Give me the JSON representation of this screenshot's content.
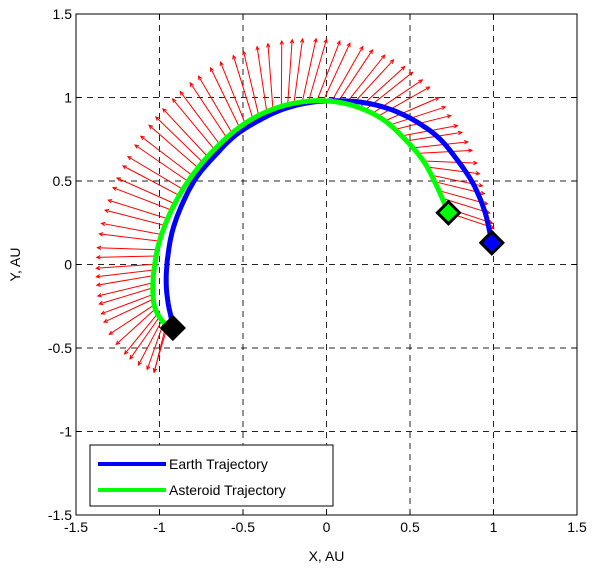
{
  "chart_data": {
    "type": "line",
    "title": "",
    "xlabel": "X, AU",
    "ylabel": "Y, AU",
    "xlim": [
      -1.5,
      1.5
    ],
    "ylim": [
      -1.5,
      1.5
    ],
    "grid": true,
    "legend_position": "bottom-left",
    "xticks": [
      -1.5,
      -1,
      -0.5,
      0,
      0.5,
      1,
      1.5
    ],
    "yticks": [
      -1.5,
      -1,
      -0.5,
      0,
      0.5,
      1,
      1.5
    ],
    "xtick_labels": [
      "-1.5",
      "-1",
      "-0.5",
      "0",
      "0.5",
      "1",
      "1.5"
    ],
    "ytick_labels": [
      "-1.5",
      "-1",
      "-0.5",
      "0",
      "0.5",
      "1",
      "1.5"
    ],
    "series": [
      {
        "name": "Earth Trajectory",
        "color": "#0000ff",
        "x": [
          0.99,
          0.95,
          0.88,
          0.78,
          0.67,
          0.53,
          0.38,
          0.22,
          0.06,
          -0.1,
          -0.26,
          -0.41,
          -0.55,
          -0.67,
          -0.78,
          -0.86,
          -0.92,
          -0.95,
          -0.96,
          -0.95,
          -0.93,
          -0.92
        ],
        "y": [
          0.13,
          0.31,
          0.48,
          0.63,
          0.76,
          0.86,
          0.93,
          0.97,
          0.98,
          0.97,
          0.93,
          0.86,
          0.77,
          0.65,
          0.52,
          0.37,
          0.21,
          0.05,
          -0.1,
          -0.22,
          -0.32,
          -0.38
        ]
      },
      {
        "name": "Asteroid Trajectory",
        "color": "#00ff00",
        "x": [
          0.73,
          0.66,
          0.58,
          0.47,
          0.35,
          0.22,
          0.08,
          -0.07,
          -0.22,
          -0.37,
          -0.51,
          -0.64,
          -0.76,
          -0.86,
          -0.94,
          -1.0,
          -1.03,
          -1.04,
          -1.03,
          -0.99,
          -0.95
        ],
        "y": [
          0.31,
          0.47,
          0.62,
          0.75,
          0.86,
          0.93,
          0.97,
          0.98,
          0.96,
          0.91,
          0.83,
          0.72,
          0.59,
          0.45,
          0.3,
          0.14,
          -0.01,
          -0.14,
          -0.25,
          -0.33,
          -0.37
        ]
      }
    ],
    "markers": [
      {
        "series": "Earth Trajectory",
        "x": 0.99,
        "y": 0.13,
        "color": "#0000ff",
        "shape": "diamond"
      },
      {
        "series": "Earth Trajectory",
        "x": -0.92,
        "y": -0.38,
        "color": "#000000",
        "shape": "diamond"
      },
      {
        "series": "Asteroid Trajectory",
        "x": 0.73,
        "y": 0.31,
        "color": "#00ff00",
        "shape": "diamond"
      }
    ],
    "vector_field": {
      "color": "#ff0000",
      "along_series": "Asteroid Trajectory",
      "count": 70
    }
  },
  "legend": {
    "entries": [
      {
        "label": "Earth Trajectory",
        "color": "#0000ff"
      },
      {
        "label": "Asteroid Trajectory",
        "color": "#00ff00"
      }
    ]
  }
}
